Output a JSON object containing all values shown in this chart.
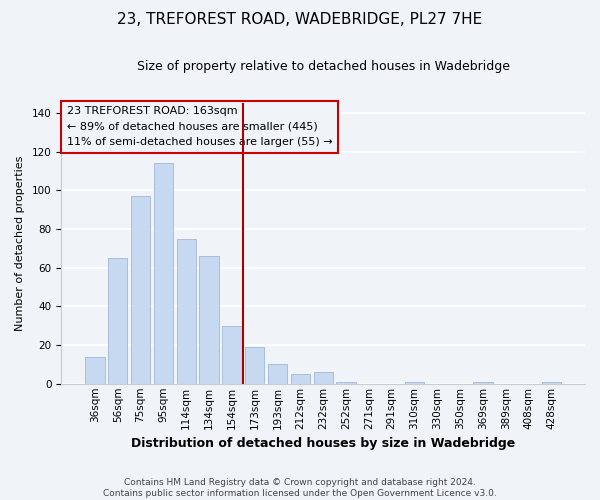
{
  "title": "23, TREFOREST ROAD, WADEBRIDGE, PL27 7HE",
  "subtitle": "Size of property relative to detached houses in Wadebridge",
  "xlabel": "Distribution of detached houses by size in Wadebridge",
  "ylabel": "Number of detached properties",
  "footer_lines": [
    "Contains HM Land Registry data © Crown copyright and database right 2024.",
    "Contains public sector information licensed under the Open Government Licence v3.0."
  ],
  "bar_labels": [
    "36sqm",
    "56sqm",
    "75sqm",
    "95sqm",
    "114sqm",
    "134sqm",
    "154sqm",
    "173sqm",
    "193sqm",
    "212sqm",
    "232sqm",
    "252sqm",
    "271sqm",
    "291sqm",
    "310sqm",
    "330sqm",
    "350sqm",
    "369sqm",
    "389sqm",
    "408sqm",
    "428sqm"
  ],
  "bar_values": [
    14,
    65,
    97,
    114,
    75,
    66,
    30,
    19,
    10,
    5,
    6,
    1,
    0,
    0,
    1,
    0,
    0,
    1,
    0,
    0,
    1
  ],
  "bar_color": "#c6d9f0",
  "bar_edge_color": "#a0b8d8",
  "ylim": [
    0,
    145
  ],
  "yticks": [
    0,
    20,
    40,
    60,
    80,
    100,
    120,
    140
  ],
  "vline_color": "#aa0000",
  "annotation_title": "23 TREFOREST ROAD: 163sqm",
  "annotation_line1": "← 89% of detached houses are smaller (445)",
  "annotation_line2": "11% of semi-detached houses are larger (55) →",
  "bg_color": "#f0f4f8",
  "grid_color": "#ffffff",
  "title_fontsize": 11,
  "subtitle_fontsize": 9,
  "xlabel_fontsize": 9,
  "ylabel_fontsize": 8,
  "tick_fontsize": 7.5,
  "footer_fontsize": 6.5
}
